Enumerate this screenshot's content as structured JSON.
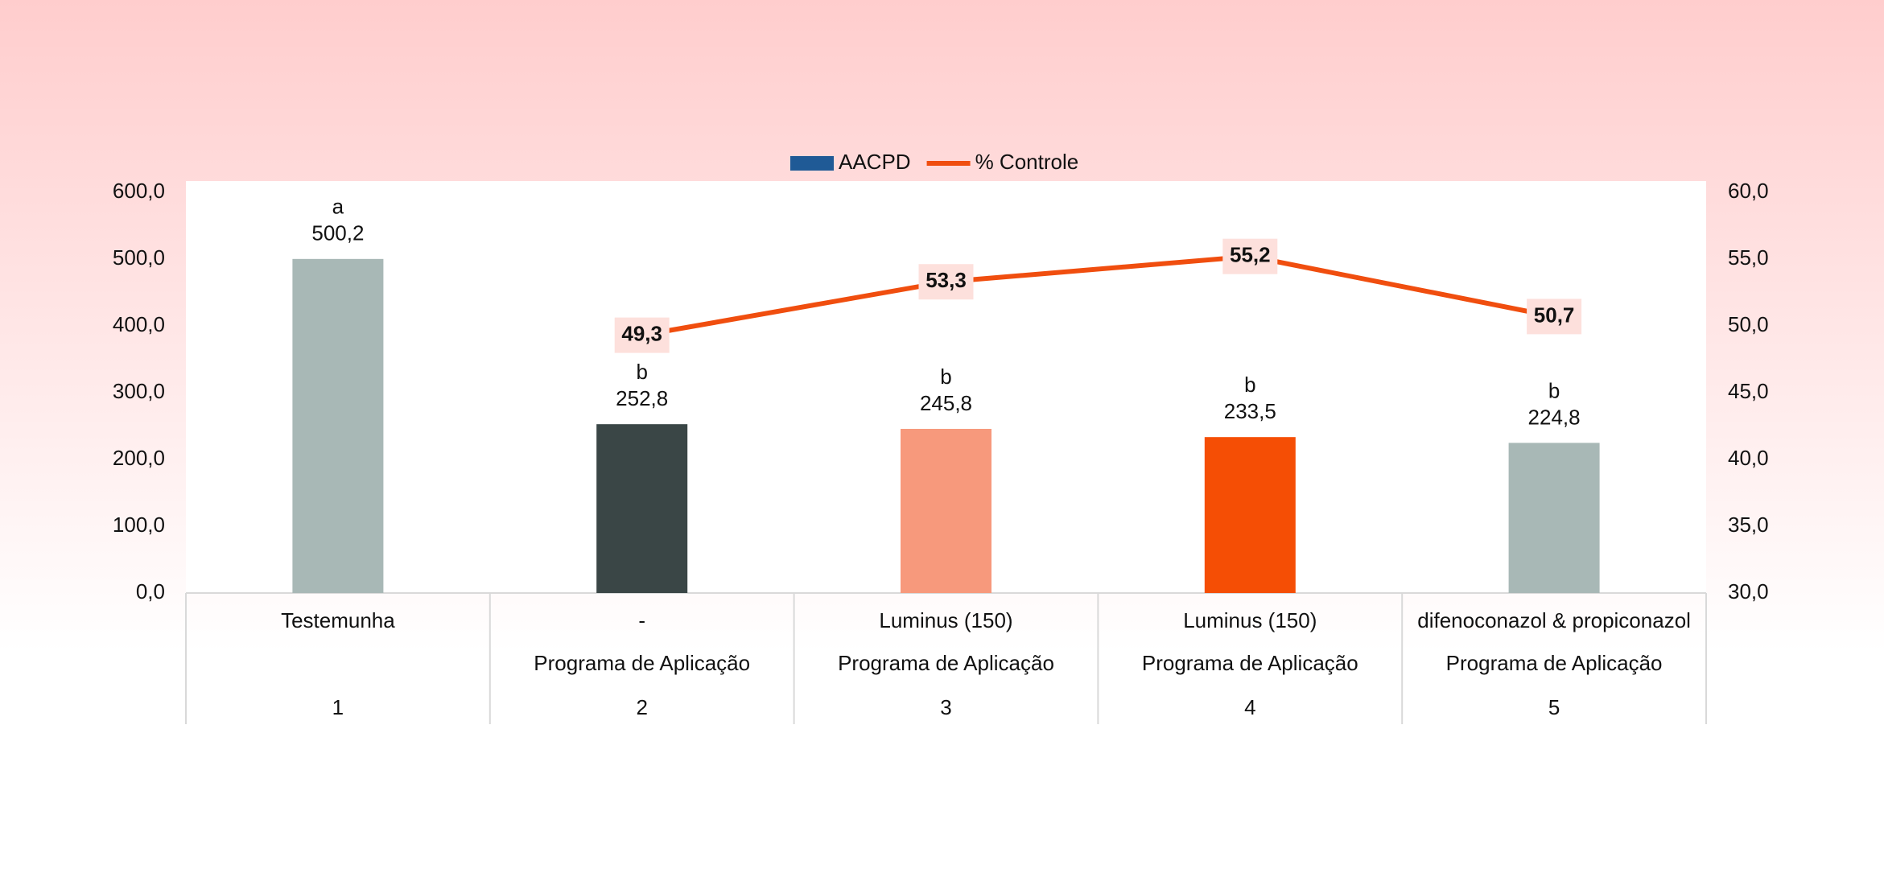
{
  "chart_data": {
    "type": "bar_line",
    "category_levels": [
      [
        "Testemunha",
        "-",
        "Luminus (150)",
        "Luminus (150)",
        "difenoconazol & propiconazol"
      ],
      [
        null,
        "Programa de Aplicação",
        "Programa de Aplicação",
        "Programa de Aplicação",
        "Programa de Aplicação"
      ],
      [
        "1",
        "2",
        "3",
        "4",
        "5"
      ]
    ],
    "series": [
      {
        "name": "AACPD",
        "type": "bar",
        "color": "#1f5a96",
        "colors": [
          "#a8b8b6",
          "#3a4646",
          "#f7997c",
          "#f54e05",
          "#a8b8b6"
        ],
        "values": [
          500.2,
          252.8,
          245.8,
          233.5,
          224.8
        ],
        "value_labels": [
          "500,2",
          "252,8",
          "245,8",
          "233,5",
          "224,8"
        ],
        "letters": [
          "a",
          "b",
          "b",
          "b",
          "b"
        ]
      },
      {
        "name": "% Controle",
        "type": "line",
        "axis": "y2",
        "color": "#f04e0f",
        "values": [
          null,
          49.3,
          53.3,
          55.2,
          50.7
        ],
        "value_labels": [
          null,
          "49,3",
          "53,3",
          "55,2",
          "50,7"
        ]
      }
    ],
    "ylim": [
      0,
      600
    ],
    "yticks": [
      {
        "value": 0,
        "label": "0,0"
      },
      {
        "value": 100,
        "label": "100,0"
      },
      {
        "value": 200,
        "label": "200,0"
      },
      {
        "value": 300,
        "label": "300,0"
      },
      {
        "value": 400,
        "label": "400,0"
      },
      {
        "value": 500,
        "label": "500,0"
      },
      {
        "value": 600,
        "label": "600,0"
      }
    ],
    "y2lim": [
      30,
      60
    ],
    "y2ticks": [
      {
        "value": 30,
        "label": "30,0"
      },
      {
        "value": 35,
        "label": "35,0"
      },
      {
        "value": 40,
        "label": "40,0"
      },
      {
        "value": 45,
        "label": "45,0"
      },
      {
        "value": 50,
        "label": "50,0"
      },
      {
        "value": 55,
        "label": "55,0"
      },
      {
        "value": 60,
        "label": "60,0"
      }
    ],
    "legend": "top"
  }
}
